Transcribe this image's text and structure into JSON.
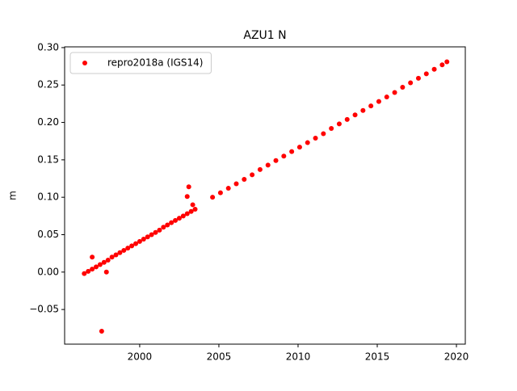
{
  "chart_data": {
    "type": "scatter",
    "title": "AZU1 N",
    "y_label": "m",
    "x": [
      1996.5,
      1996.75,
      1997.0,
      1997.25,
      1997.5,
      1997.75,
      1998.0,
      1998.25,
      1998.5,
      1998.75,
      1999.0,
      1999.25,
      1999.5,
      1999.75,
      2000.0,
      2000.25,
      2000.5,
      2000.75,
      2001.0,
      2001.25,
      2001.5,
      2001.75,
      2002.0,
      2002.25,
      2002.5,
      2002.75,
      2003.0,
      2003.25,
      2003.5,
      2004.6,
      2005.1,
      2005.6,
      2006.1,
      2006.6,
      2007.1,
      2007.6,
      2008.1,
      2008.6,
      2009.1,
      2009.6,
      2010.1,
      2010.6,
      2011.1,
      2011.6,
      2012.1,
      2012.6,
      2013.1,
      2013.6,
      2014.1,
      2014.6,
      2015.1,
      2015.6,
      2016.1,
      2016.6,
      2017.1,
      2017.6,
      2018.1,
      2018.6,
      2019.1,
      2019.4,
      1997.6,
      1997.0,
      1997.9,
      2003.0,
      2003.1,
      2003.35
    ],
    "series": [
      {
        "name": "repro2018a (IGS14)",
        "color": "#ff0000",
        "values": [
          -0.002,
          0.001,
          0.004,
          0.007,
          0.01,
          0.013,
          0.016,
          0.02,
          0.023,
          0.026,
          0.029,
          0.032,
          0.035,
          0.038,
          0.041,
          0.044,
          0.047,
          0.05,
          0.053,
          0.056,
          0.06,
          0.063,
          0.066,
          0.069,
          0.072,
          0.075,
          0.078,
          0.081,
          0.084,
          0.1,
          0.106,
          0.112,
          0.118,
          0.124,
          0.13,
          0.137,
          0.143,
          0.149,
          0.155,
          0.161,
          0.167,
          0.173,
          0.179,
          0.185,
          0.192,
          0.198,
          0.204,
          0.21,
          0.216,
          0.222,
          0.228,
          0.234,
          0.24,
          0.247,
          0.253,
          0.259,
          0.265,
          0.271,
          0.277,
          0.281,
          -0.079,
          0.02,
          0.0,
          0.101,
          0.114,
          0.09
        ]
      }
    ],
    "xlim": [
      1995.26,
      2020.56
    ],
    "xticks": [
      2000,
      2005,
      2010,
      2015,
      2020
    ],
    "ylim": [
      -0.0963,
      0.301
    ],
    "yticks": [
      {
        "value": -0.05,
        "label": "−0.05"
      },
      {
        "value": 0,
        "label": "0.00"
      },
      {
        "value": 0.05,
        "label": "0.05"
      },
      {
        "value": 0.1,
        "label": "0.10"
      },
      {
        "value": 0.15,
        "label": "0.15"
      },
      {
        "value": 0.2,
        "label": "0.20"
      },
      {
        "value": 0.25,
        "label": "0.25"
      },
      {
        "value": 0.3,
        "label": "0.30"
      }
    ],
    "legend": "upper left"
  }
}
